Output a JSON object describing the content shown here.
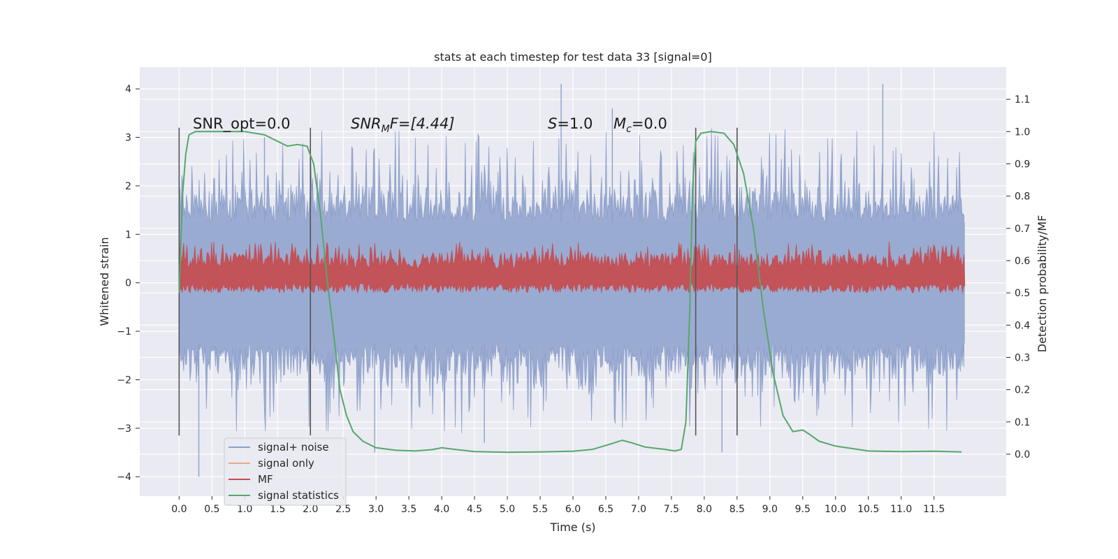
{
  "chart_data": {
    "type": "line",
    "title": "stats at each timestep for test data 33 [signal=0]",
    "xlabel": "Time (s)",
    "ylabel": "Whitened strain",
    "y2label": "Detection probability/MF",
    "xlim": [
      -0.6,
      12.6
    ],
    "ylim": [
      -4.4,
      4.45
    ],
    "y2lim": [
      -0.13,
      1.2
    ],
    "x_ticks": [
      0.0,
      0.5,
      1.0,
      1.5,
      2.0,
      2.5,
      3.0,
      3.5,
      4.0,
      4.5,
      5.0,
      5.5,
      6.0,
      6.5,
      7.0,
      7.5,
      8.0,
      8.5,
      9.0,
      9.5,
      10.0,
      10.5,
      11.0,
      11.5
    ],
    "x_tick_labels": [
      "0.0",
      "0.5",
      "1.0",
      "1.5",
      "2.0",
      "2.5",
      "3.0",
      "3.5",
      "4.0",
      "4.5",
      "5.0",
      "5.5",
      "6.0",
      "6.5",
      "7.0",
      "7.5",
      "8.0",
      "8.5",
      "9.0",
      "9.5",
      "10.0",
      "10.5",
      "11.0",
      "11.5"
    ],
    "y_ticks": [
      -4,
      -3,
      -2,
      -1,
      0,
      1,
      2,
      3,
      4
    ],
    "y_tick_labels": [
      "−4",
      "−3",
      "−2",
      "−1",
      "0",
      "1",
      "2",
      "3",
      "4"
    ],
    "y2_ticks": [
      0.0,
      0.1,
      0.2,
      0.3,
      0.4,
      0.5,
      0.6,
      0.7,
      0.8,
      0.9,
      1.0,
      1.1
    ],
    "y2_tick_labels": [
      "0.0",
      "0.1",
      "0.2",
      "0.3",
      "0.4",
      "0.5",
      "0.6",
      "0.7",
      "0.8",
      "0.9",
      "1.0",
      "1.1"
    ],
    "grid": true,
    "legend_position": "lower-left",
    "legend": [
      {
        "name": "signal+ noise",
        "color": "#8da0cb"
      },
      {
        "name": "signal only",
        "color": "#e8a98c"
      },
      {
        "name": "MF",
        "color": "#c44e52"
      },
      {
        "name": "signal statistics",
        "color": "#55a868"
      }
    ],
    "series_noise": {
      "name": "signal+ noise",
      "color": "#8da0cb",
      "description_range": {
        "x": [
          0.0,
          11.97
        ],
        "y_typical": [
          -2.0,
          2.3
        ],
        "y_extreme": [
          -4.0,
          4.1
        ]
      }
    },
    "series_mf": {
      "name": "MF",
      "color": "#c44e52",
      "x_range": [
        0.0,
        11.97
      ],
      "y2_range": [
        0.5,
        0.65
      ]
    },
    "series_stats": {
      "name": "signal statistics",
      "color": "#55a868",
      "x": [
        0.0,
        0.05,
        0.1,
        0.15,
        0.25,
        0.5,
        1.0,
        1.3,
        1.5,
        1.65,
        1.8,
        1.95,
        2.05,
        2.15,
        2.25,
        2.35,
        2.45,
        2.55,
        2.65,
        2.8,
        3.0,
        3.3,
        3.6,
        3.85,
        4.0,
        4.2,
        4.5,
        5.0,
        5.5,
        6.0,
        6.3,
        6.55,
        6.75,
        6.9,
        7.1,
        7.4,
        7.55,
        7.65,
        7.72,
        7.78,
        7.82,
        7.87,
        7.95,
        8.1,
        8.3,
        8.45,
        8.6,
        8.75,
        8.9,
        9.05,
        9.2,
        9.35,
        9.5,
        9.6,
        9.75,
        10.0,
        10.5,
        11.0,
        11.5,
        11.92
      ],
      "y2": [
        0.5,
        0.8,
        0.93,
        0.99,
        1.0,
        1.0,
        1.0,
        0.99,
        0.97,
        0.955,
        0.96,
        0.955,
        0.9,
        0.75,
        0.55,
        0.38,
        0.2,
        0.12,
        0.07,
        0.04,
        0.02,
        0.012,
        0.01,
        0.014,
        0.02,
        0.015,
        0.008,
        0.006,
        0.007,
        0.009,
        0.015,
        0.03,
        0.043,
        0.035,
        0.022,
        0.015,
        0.01,
        0.015,
        0.1,
        0.45,
        0.82,
        0.97,
        0.995,
        1.0,
        0.995,
        0.96,
        0.87,
        0.7,
        0.45,
        0.25,
        0.12,
        0.07,
        0.075,
        0.062,
        0.04,
        0.025,
        0.01,
        0.008,
        0.009,
        0.007
      ]
    },
    "markers_x": [
      0.0,
      2.0,
      7.87,
      8.5
    ],
    "annotations": {
      "snr_opt": "SNR_opt=0.0",
      "snr_mf_base": "SNR",
      "snr_mf_sub": "M",
      "snr_mf_rest": "F=[4.44]",
      "s_label": "S",
      "s_value": "=1.0",
      "mc_base": "M",
      "mc_sub": "c",
      "mc_value": "=0.0"
    }
  }
}
